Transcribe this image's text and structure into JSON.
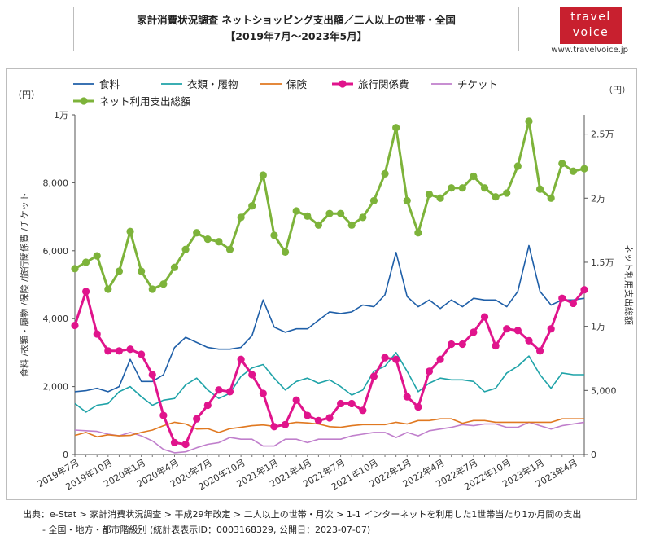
{
  "header": {
    "title_line1": "家計消費状況調査 ネットショッピング支出額／二人以上の世帯・全国",
    "title_line2": "【2019年7月〜2023年5月】"
  },
  "logo": {
    "line1": "travel",
    "line2": "voice",
    "url": "www.travelvoice.jp"
  },
  "source": {
    "line1": "出典：e-Stat > 家計消費状況調査 > 平成29年改定 > 二人以上の世帯・月次 > 1-1 インターネットを利用した1世帯当たり1か月間の支出",
    "line2": "- 全国・地方・都市階級別 (統計表表示ID：0003168329, 公開日：2023-07-07)"
  },
  "colors": {
    "food": "#1f5fa8",
    "clothing": "#1fa3a8",
    "insurance": "#e07820",
    "travel": "#e0148c",
    "ticket": "#c07fcc",
    "total": "#7db33a"
  },
  "chart_data": {
    "type": "line",
    "ylabel": "食料 /衣類・履物 /保険 /旅行関係費 /チケット",
    "y2label": "ネット利用支出総額",
    "left_unit": "（円）",
    "right_unit": "（円）",
    "ylim": [
      0,
      10000
    ],
    "y2lim": [
      0,
      26500
    ],
    "left_ticks": [
      {
        "v": 0,
        "label": "0"
      },
      {
        "v": 2000,
        "label": "2,000"
      },
      {
        "v": 4000,
        "label": "4,000"
      },
      {
        "v": 6000,
        "label": "6,000"
      },
      {
        "v": 8000,
        "label": "8,000"
      },
      {
        "v": 10000,
        "label": "1万"
      }
    ],
    "right_ticks": [
      {
        "v": 0,
        "label": "0"
      },
      {
        "v": 5000,
        "label": "5,000"
      },
      {
        "v": 10000,
        "label": "1万"
      },
      {
        "v": 15000,
        "label": "1.5万"
      },
      {
        "v": 20000,
        "label": "2万"
      },
      {
        "v": 25000,
        "label": "2.5万"
      }
    ],
    "x_tick_labels": [
      {
        "i": 0,
        "label": "2019年7月"
      },
      {
        "i": 3,
        "label": "2019年10月"
      },
      {
        "i": 6,
        "label": "2020年1月"
      },
      {
        "i": 9,
        "label": "2020年4月"
      },
      {
        "i": 12,
        "label": "2020年7月"
      },
      {
        "i": 15,
        "label": "2020年10月"
      },
      {
        "i": 18,
        "label": "2021年1月"
      },
      {
        "i": 21,
        "label": "2021年4月"
      },
      {
        "i": 24,
        "label": "2021年7月"
      },
      {
        "i": 27,
        "label": "2021年10月"
      },
      {
        "i": 30,
        "label": "2022年1月"
      },
      {
        "i": 33,
        "label": "2022年4月"
      },
      {
        "i": 36,
        "label": "2022年7月"
      },
      {
        "i": 39,
        "label": "2022年10月"
      },
      {
        "i": 42,
        "label": "2023年1月"
      },
      {
        "i": 45,
        "label": "2023年4月"
      }
    ],
    "x_count": 47,
    "series": [
      {
        "key": "food",
        "name": "食料",
        "axis": "left",
        "markers": false,
        "values": [
          1850,
          1880,
          1950,
          1850,
          2000,
          2800,
          2150,
          2150,
          2350,
          3150,
          3450,
          3300,
          3150,
          3100,
          3100,
          3150,
          3500,
          4550,
          3750,
          3600,
          3700,
          3700,
          3950,
          4200,
          4150,
          4200,
          4400,
          4350,
          4700,
          5950,
          4650,
          4350,
          4550,
          4300,
          4550,
          4350,
          4600,
          4550,
          4550,
          4350,
          4800,
          6150,
          4800,
          4400,
          4550,
          4550,
          4600
        ]
      },
      {
        "key": "clothing",
        "name": "衣類・履物",
        "axis": "left",
        "markers": false,
        "values": [
          1500,
          1250,
          1450,
          1500,
          1850,
          2000,
          1700,
          1450,
          1600,
          1650,
          2050,
          2250,
          1900,
          1650,
          1800,
          2300,
          2550,
          2650,
          2250,
          1900,
          2150,
          2250,
          2100,
          2200,
          2000,
          1750,
          1900,
          2450,
          2600,
          3000,
          2450,
          1850,
          2100,
          2250,
          2200,
          2200,
          2150,
          1850,
          1950,
          2400,
          2600,
          2900,
          2350,
          1950,
          2400,
          2350,
          2350
        ]
      },
      {
        "key": "insurance",
        "name": "保険",
        "axis": "left",
        "markers": false,
        "values": [
          560,
          650,
          520,
          580,
          550,
          560,
          650,
          720,
          850,
          950,
          900,
          750,
          760,
          650,
          760,
          800,
          850,
          870,
          830,
          900,
          950,
          930,
          900,
          820,
          800,
          850,
          880,
          880,
          880,
          950,
          900,
          1000,
          1000,
          1050,
          1050,
          920,
          1000,
          1000,
          950,
          950,
          950,
          950,
          950,
          950,
          1050,
          1050,
          1050
        ]
      },
      {
        "key": "travel",
        "name": "旅行関係費",
        "axis": "left",
        "markers": true,
        "values": [
          3800,
          4800,
          3550,
          3050,
          3050,
          3100,
          2950,
          2350,
          1150,
          350,
          300,
          1050,
          1450,
          1900,
          1850,
          2800,
          2350,
          1800,
          820,
          880,
          1600,
          1150,
          1000,
          1080,
          1500,
          1500,
          1300,
          2300,
          2850,
          2800,
          1700,
          1400,
          2450,
          2800,
          3250,
          3250,
          3600,
          4050,
          3200,
          3700,
          3650,
          3350,
          3050,
          3700,
          4600,
          4450,
          4850
        ]
      },
      {
        "key": "ticket",
        "name": "チケット",
        "axis": "left",
        "markers": false,
        "values": [
          720,
          700,
          680,
          600,
          550,
          650,
          550,
          400,
          150,
          50,
          80,
          200,
          300,
          350,
          500,
          450,
          450,
          250,
          250,
          450,
          450,
          350,
          450,
          450,
          450,
          550,
          600,
          650,
          650,
          500,
          650,
          550,
          700,
          750,
          800,
          880,
          850,
          900,
          900,
          800,
          800,
          950,
          850,
          750,
          850,
          900,
          950
        ]
      },
      {
        "key": "total",
        "name": "ネット利用支出総額",
        "axis": "right",
        "markers": true,
        "values": [
          14500,
          15000,
          15500,
          12900,
          14300,
          17400,
          14300,
          12900,
          13300,
          14600,
          16000,
          17300,
          16800,
          16600,
          16000,
          18500,
          19400,
          21800,
          17100,
          15800,
          19000,
          18600,
          17900,
          18800,
          18800,
          17900,
          18500,
          19800,
          21900,
          25500,
          19800,
          17300,
          20300,
          20000,
          20800,
          20800,
          21700,
          20800,
          20100,
          20400,
          22500,
          26000,
          20700,
          20000,
          22700,
          22100,
          22300
        ]
      }
    ]
  }
}
